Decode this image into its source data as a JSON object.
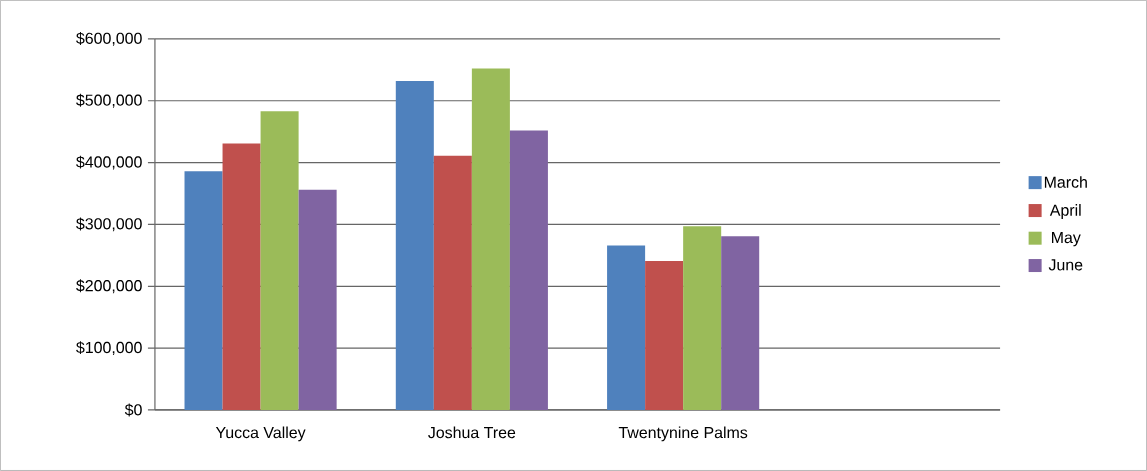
{
  "chart_data": {
    "type": "bar",
    "categories": [
      "Yucca Valley",
      "Joshua Tree",
      "Twentynine Palms",
      null
    ],
    "series": [
      {
        "name": "March",
        "color": "#4f81bd",
        "values": [
          386000,
          532000,
          266000,
          null
        ]
      },
      {
        "name": "April",
        "color": "#c0504d",
        "values": [
          431000,
          411000,
          241000,
          null
        ]
      },
      {
        "name": "May",
        "color": "#9bbb59",
        "values": [
          483000,
          552000,
          297000,
          null
        ]
      },
      {
        "name": "June",
        "color": "#8064a2",
        "values": [
          356000,
          452000,
          281000,
          null
        ]
      }
    ],
    "ylim": [
      0,
      600000
    ],
    "yticks": [
      {
        "value": 0,
        "label": "$0"
      },
      {
        "value": 100000,
        "label": "$100,000"
      },
      {
        "value": 200000,
        "label": "$200,000"
      },
      {
        "value": 300000,
        "label": "$300,000"
      },
      {
        "value": 400000,
        "label": "$400,000"
      },
      {
        "value": 500000,
        "label": "$500,000"
      },
      {
        "value": 600000,
        "label": "$600,000"
      }
    ],
    "grid": "y",
    "legend": "right"
  }
}
